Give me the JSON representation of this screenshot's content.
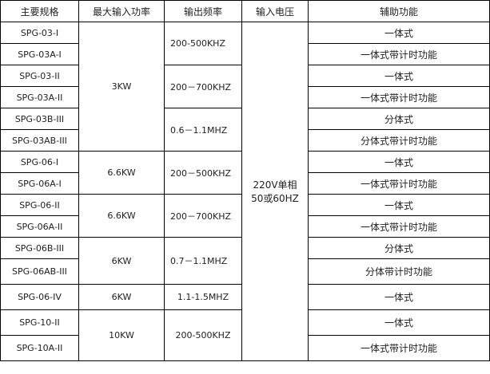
{
  "headers": [
    "主要规格",
    "最大输入功率",
    "输出频率",
    "输入电压",
    "辅助功能"
  ],
  "rows": [
    {
      "spec": "SPG-03-I",
      "aux": "一体式"
    },
    {
      "spec": "SPG-03A-I",
      "aux": "一体式带计时功能"
    },
    {
      "spec": "SPG-03-II",
      "aux": "一体式"
    },
    {
      "spec": "SPG-03A-II",
      "aux": "一体式带计时功能"
    },
    {
      "spec": "SPG-03B-III",
      "aux": "分体式"
    },
    {
      "spec": "SPG-03AB-III",
      "aux": "分体式带计时功能"
    },
    {
      "spec": "SPG-06-I",
      "aux": "一体式"
    },
    {
      "spec": "SPG-06A-I",
      "aux": "一体式带计时功能"
    },
    {
      "spec": "SPG-06-II",
      "aux": "一体式"
    },
    {
      "spec": "SPG-06A-II",
      "aux": "一体式带计时功能"
    },
    {
      "spec": "SPG-06B-III",
      "aux": "分体式"
    },
    {
      "spec": "SPG-06AB-III",
      "aux": "分体带计时功能"
    },
    {
      "spec": "SPG-06-IV",
      "aux": "一体式"
    },
    {
      "spec": "SPG-10-II",
      "aux": "一体式"
    },
    {
      "spec": "SPG-10A-II",
      "aux": "一体式带计时功能"
    }
  ],
  "power": [
    "3KW",
    "6.6KW",
    "6.6KW",
    "6KW",
    "6KW",
    "10KW"
  ],
  "freq": [
    "200-500KHZ",
    "200－700KHZ",
    "0.6－1.1MHZ",
    "200－500KHZ",
    "200－700KHZ",
    "0.7－1.1MHZ",
    "1.1-1.5MHZ",
    "200-500KHZ"
  ],
  "voltage": {
    "line1": "220V单相",
    "line2": "50或60HZ"
  }
}
